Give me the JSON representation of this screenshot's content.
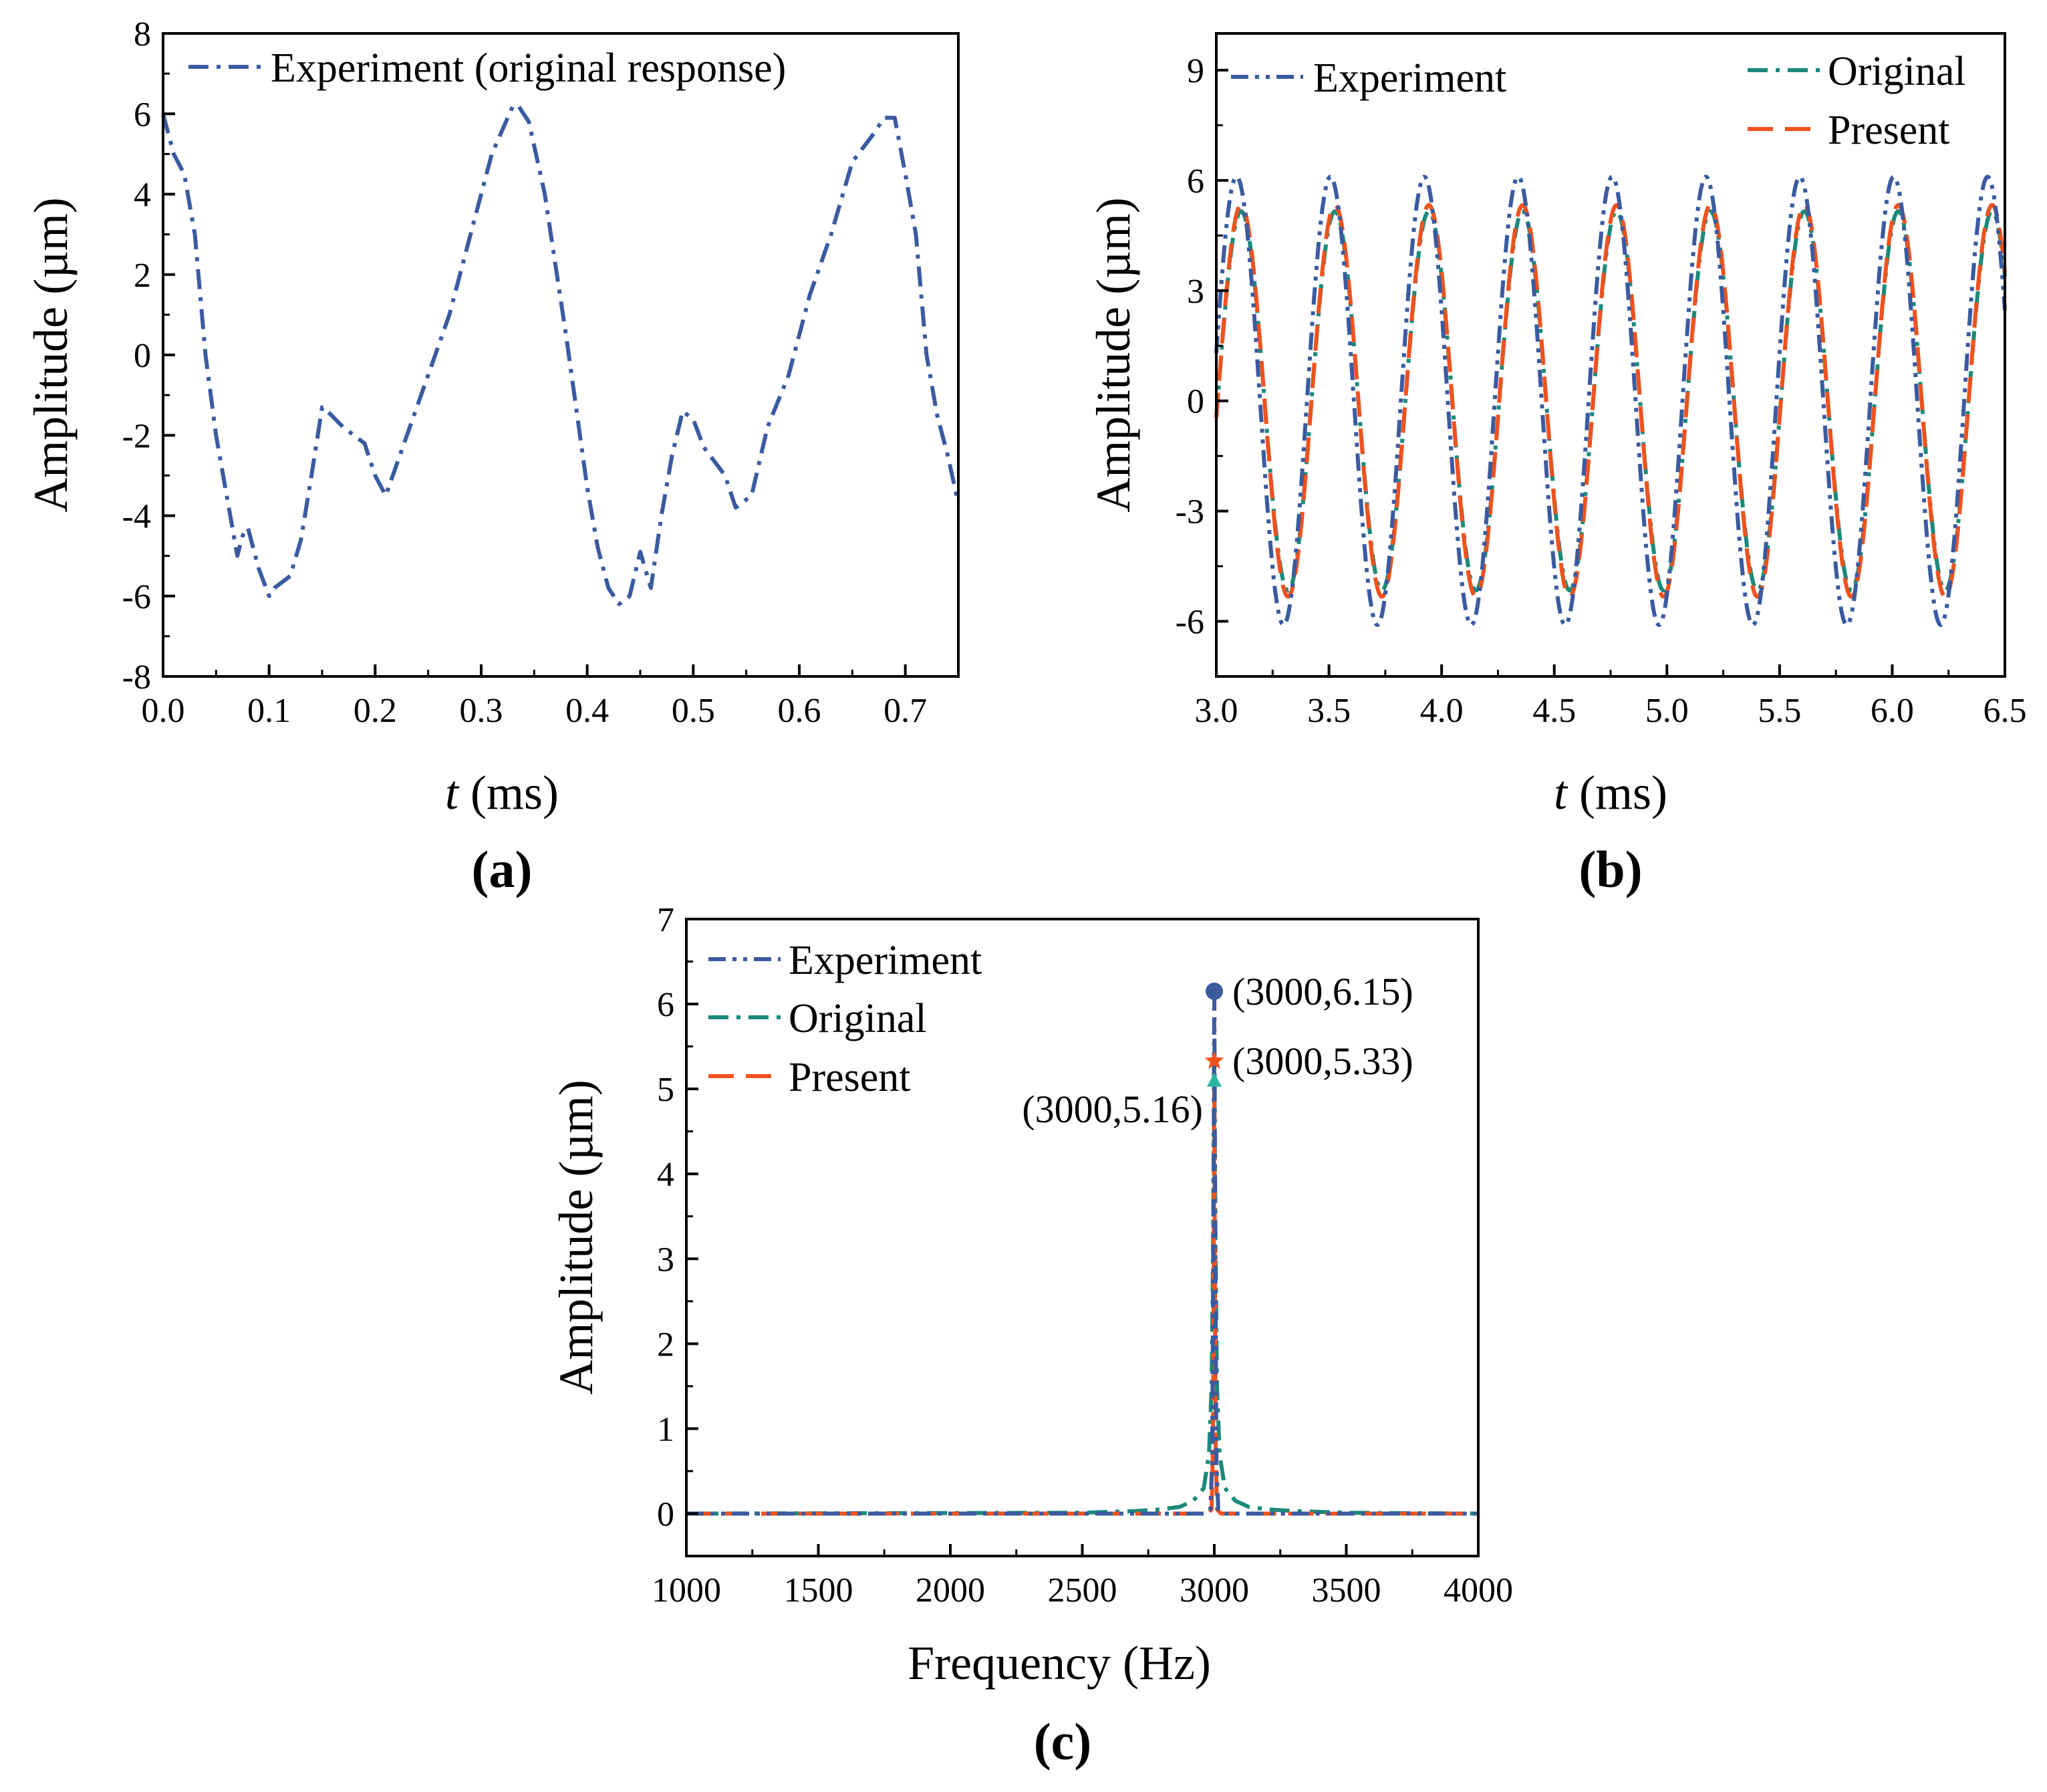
{
  "chart_data": [
    {
      "id": "a",
      "type": "line",
      "panel_label": "(a)",
      "xlabel_italic": "t",
      "xlabel_rest": " (ms)",
      "ylabel": "Amplitude (µm)",
      "xlim": [
        0.0,
        0.75
      ],
      "ylim": [
        -8,
        8
      ],
      "xticks": [
        0.0,
        0.1,
        0.2,
        0.3,
        0.4,
        0.5,
        0.6,
        0.7
      ],
      "xtick_labels": [
        "0.0",
        "0.1",
        "0.2",
        "0.3",
        "0.4",
        "0.5",
        "0.6",
        "0.7"
      ],
      "yticks": [
        -8,
        -6,
        -4,
        -2,
        0,
        2,
        4,
        6,
        8
      ],
      "ytick_labels": [
        "-8",
        "-6",
        "-4",
        "-2",
        "0",
        "2",
        "4",
        "6",
        "8"
      ],
      "legend_position": "top-left",
      "series": [
        {
          "name": "Experiment (original response)",
          "color": "#3a5ba0",
          "dash": "dashdot",
          "x": [
            0.0,
            0.01,
            0.02,
            0.03,
            0.04,
            0.05,
            0.06,
            0.07,
            0.075,
            0.08,
            0.09,
            0.1,
            0.105,
            0.12,
            0.13,
            0.14,
            0.15,
            0.155,
            0.17,
            0.19,
            0.2,
            0.21,
            0.23,
            0.25,
            0.27,
            0.29,
            0.31,
            0.33,
            0.335,
            0.345,
            0.36,
            0.38,
            0.4,
            0.41,
            0.42,
            0.43,
            0.44,
            0.45,
            0.46,
            0.47,
            0.48,
            0.49,
            0.5,
            0.51,
            0.53,
            0.54,
            0.555,
            0.57,
            0.59,
            0.61,
            0.63,
            0.65,
            0.67,
            0.68,
            0.69,
            0.7,
            0.71,
            0.72,
            0.73,
            0.74,
            0.75
          ],
          "y": [
            6.0,
            5.0,
            4.5,
            3.0,
            0.0,
            -2.0,
            -3.5,
            -5.0,
            -4.5,
            -4.3,
            -5.3,
            -6.0,
            -5.8,
            -5.5,
            -4.6,
            -3.0,
            -1.3,
            -1.4,
            -1.8,
            -2.2,
            -3.0,
            -3.5,
            -2.0,
            -0.5,
            1.0,
            3.0,
            5.0,
            6.2,
            6.2,
            5.8,
            4.0,
            0.5,
            -3.3,
            -4.8,
            -5.8,
            -6.2,
            -6.0,
            -4.9,
            -5.8,
            -4.0,
            -2.5,
            -1.4,
            -1.6,
            -2.3,
            -3.0,
            -3.8,
            -3.5,
            -1.8,
            -0.5,
            1.5,
            3.0,
            4.8,
            5.5,
            5.9,
            5.9,
            4.5,
            3.0,
            0.0,
            -1.5,
            -2.5,
            -3.7
          ]
        }
      ]
    },
    {
      "id": "b",
      "type": "line",
      "panel_label": "(b)",
      "xlabel_italic": "t",
      "xlabel_rest": " (ms)",
      "ylabel": "Amplitude (µm)",
      "xlim": [
        3.0,
        6.5
      ],
      "ylim": [
        -7.5,
        10
      ],
      "xticks": [
        3.0,
        3.5,
        4.0,
        4.5,
        5.0,
        5.5,
        6.0,
        6.5
      ],
      "xtick_labels": [
        "3.0",
        "3.5",
        "4.0",
        "4.5",
        "5.0",
        "5.5",
        "6.0",
        "6.5"
      ],
      "yticks": [
        -6,
        -3,
        0,
        3,
        6,
        9
      ],
      "ytick_labels": [
        "-6",
        "-3",
        "0",
        "3",
        "6",
        "9"
      ],
      "legend_position": "top",
      "signal": {
        "frequency_khz": 2.4,
        "phase_zero_ms": 3.09
      },
      "series": [
        {
          "name": "Experiment",
          "color": "#3a5ba0",
          "dash": "dashdotdot",
          "amplitude": 6.1,
          "phase_ms": 0.0
        },
        {
          "name": "Original",
          "color": "#1b8a7a",
          "dash": "dashdot",
          "amplitude": 5.16,
          "phase_ms": 0.02
        },
        {
          "name": "Present",
          "color": "#f0521e",
          "dash": "dash",
          "amplitude": 5.33,
          "phase_ms": 0.02
        }
      ]
    },
    {
      "id": "c",
      "type": "line",
      "panel_label": "(c)",
      "xlabel": "Frequency (Hz)",
      "ylabel": "Amplitude (µm)",
      "xlim": [
        1000,
        4000
      ],
      "ylim": [
        -0.5,
        7
      ],
      "xticks": [
        1000,
        1500,
        2000,
        2500,
        3000,
        3500,
        4000
      ],
      "xtick_labels": [
        "1000",
        "1500",
        "2000",
        "2500",
        "3000",
        "3500",
        "4000"
      ],
      "yticks": [
        0,
        1,
        2,
        3,
        4,
        5,
        6,
        7
      ],
      "ytick_labels": [
        "0",
        "1",
        "2",
        "3",
        "4",
        "5",
        "6",
        "7"
      ],
      "legend_position": "top-left",
      "series": [
        {
          "name": "Experiment",
          "color": "#3a5ba0",
          "dash": "dashdotdot",
          "x": [
            1000,
            2960,
            2985,
            2992,
            2996,
            3000,
            3004,
            3008,
            3015,
            3040,
            4000
          ],
          "y": [
            0,
            0,
            0.05,
            0.6,
            3.0,
            6.15,
            3.0,
            0.6,
            0.05,
            0,
            0
          ]
        },
        {
          "name": "Original",
          "color": "#1b8a7a",
          "dash": "dashdot",
          "x": [
            1000,
            2500,
            2700,
            2800,
            2870,
            2920,
            2960,
            2980,
            2990,
            2995,
            3000,
            3005,
            3010,
            3020,
            3040,
            3080,
            3130,
            3200,
            3300,
            3500,
            4000
          ],
          "y": [
            0,
            0.01,
            0.03,
            0.05,
            0.08,
            0.15,
            0.3,
            0.7,
            1.5,
            3.0,
            5.16,
            3.0,
            1.5,
            0.7,
            0.3,
            0.15,
            0.08,
            0.05,
            0.03,
            0.01,
            0
          ]
        },
        {
          "name": "Present",
          "color": "#f0521e",
          "dash": "dash",
          "x": [
            1000,
            2975,
            2990,
            2995,
            2998,
            3000,
            3002,
            3005,
            3010,
            3025,
            4000
          ],
          "y": [
            0,
            0,
            0.05,
            0.8,
            3.0,
            5.33,
            3.0,
            0.8,
            0.05,
            0,
            0
          ]
        }
      ],
      "annotations": [
        {
          "text": "(3000,6.15)",
          "x": 3000,
          "y": 6.15,
          "marker": "circle",
          "color": "#3a5ba0",
          "side": "right"
        },
        {
          "text": "(3000,5.33)",
          "x": 3000,
          "y": 5.33,
          "marker": "star",
          "color": "#f0521e",
          "side": "right"
        },
        {
          "text": "(3000,5.16)",
          "x": 3000,
          "y": 5.16,
          "marker": "triangle",
          "color": "#2bb5a0",
          "side": "left"
        }
      ]
    }
  ]
}
